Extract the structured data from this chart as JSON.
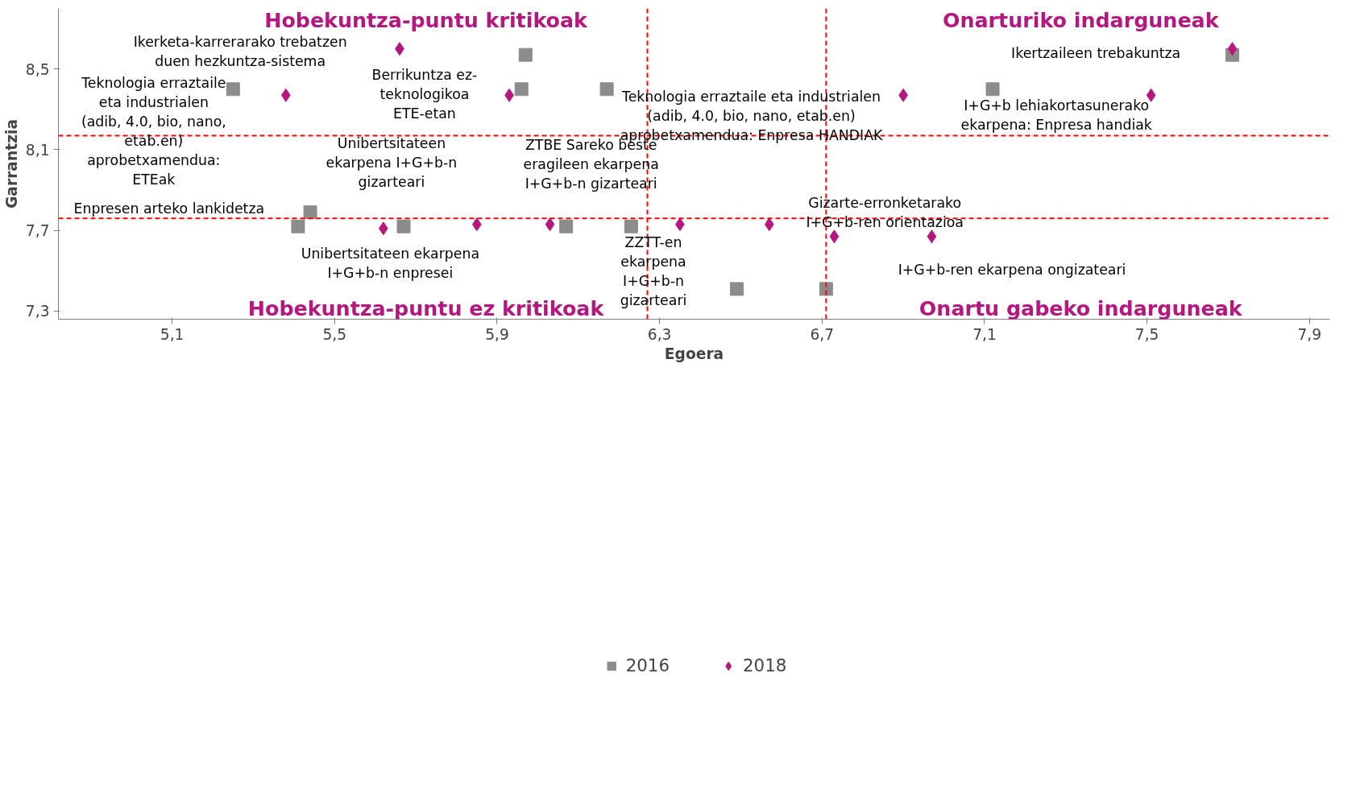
{
  "chart_data": {
    "type": "scatter",
    "xlabel": "Egoera",
    "ylabel": "Garrantzia",
    "xlim": [
      4.82,
      7.95
    ],
    "ylim": [
      7.26,
      8.8
    ],
    "xticks": [
      {
        "value": 5.1,
        "label": "5,1"
      },
      {
        "value": 5.5,
        "label": "5,5"
      },
      {
        "value": 5.9,
        "label": "5,9"
      },
      {
        "value": 6.3,
        "label": "6,3"
      },
      {
        "value": 6.7,
        "label": "6,7"
      },
      {
        "value": 7.1,
        "label": "7,1"
      },
      {
        "value": 7.5,
        "label": "7,5"
      },
      {
        "value": 7.9,
        "label": "7,9"
      }
    ],
    "yticks": [
      {
        "value": 7.3,
        "label": "7,3"
      },
      {
        "value": 7.7,
        "label": "7,7"
      },
      {
        "value": 8.1,
        "label": "8,1"
      },
      {
        "value": 8.5,
        "label": "8,5"
      }
    ],
    "grid": false,
    "legend": "bottom",
    "series": [
      {
        "name": "2016",
        "color": "#8c8c8c",
        "marker": "square",
        "x": [
          5.97,
          7.71,
          5.96,
          5.25,
          6.17,
          7.12,
          5.44,
          5.41,
          5.67,
          6.07,
          6.23,
          6.49,
          6.71
        ],
        "values": [
          8.57,
          8.57,
          8.4,
          8.4,
          8.4,
          8.4,
          7.79,
          7.72,
          7.72,
          7.72,
          7.72,
          7.41,
          7.41
        ]
      },
      {
        "name": "2018",
        "color": "#b5177e",
        "marker": "diamond",
        "x": [
          5.66,
          7.71,
          5.93,
          5.38,
          6.9,
          7.51,
          5.62,
          5.85,
          6.03,
          6.57,
          6.35,
          6.73,
          6.97
        ],
        "values": [
          8.6,
          8.6,
          8.37,
          8.37,
          8.37,
          8.37,
          7.71,
          7.73,
          7.73,
          7.73,
          7.73,
          7.67,
          7.67
        ]
      }
    ],
    "ref_lines": [
      {
        "axis": "x",
        "value": 6.27,
        "color": "#ff0000",
        "line_style": "dashed"
      },
      {
        "axis": "x",
        "value": 6.71,
        "color": "#ff0000",
        "line_style": "dashed"
      },
      {
        "axis": "y",
        "value": 8.17,
        "color": "#ff0000",
        "line_style": "dashed"
      },
      {
        "axis": "y",
        "value": 7.76,
        "color": "#ff0000",
        "line_style": "dashed"
      }
    ],
    "annotations": [
      "Hobekuntza-puntu kritikoak",
      "Onarturiko indarguneak",
      "Hobekuntza-puntu ez kritikoak",
      "Onartu gabeko indarguneak",
      "Ikerketa-karrerarako trebatzen\nduen hezkuntza-sistema",
      "Ikertzaileen trebakuntza",
      "Berrikuntza ez-\nteknologikoa\nETE-etan",
      "Teknologia erraztaile\neta industrialen\n(adib, 4.0, bio, nano,\netab.en)\naprobetxamendua:\nETEak",
      "Teknologia erraztaile eta industrialen\n(adib, 4.0, bio, nano, etab.en)\naprobetxamendua: Enpresa HANDIAK",
      "I+G+b lehiakortasunerako\nekarpena: Enpresa handiak",
      "Unibertsitateen\nekarpena I+G+b-n\ngizarteari",
      "ZTBE Sareko beste\neragileen ekarpena\nI+G+b-n gizarteari",
      "Enpresen arteko lankidetza",
      "Gizarte-erronketarako\nI+G+b-ren orientazioa",
      "Unibertsitateen ekarpena\nI+G+b-n enpresei",
      "ZZTT-en\nekarpena\nI+G+b-n\ngizarteari",
      "I+G+b-ren ekarpena ongizateari"
    ]
  }
}
